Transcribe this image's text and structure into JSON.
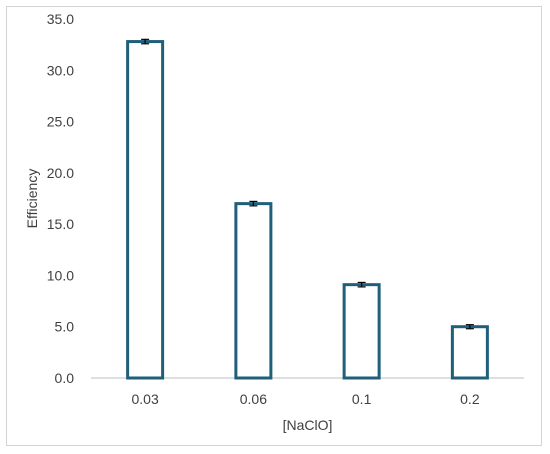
{
  "chart_data": {
    "type": "bar",
    "categories": [
      "0.03",
      "0.06",
      "0.1",
      "0.2"
    ],
    "values": [
      32.8,
      17.0,
      9.1,
      5.0
    ],
    "error": [
      0.12,
      0.12,
      0.12,
      0.1
    ],
    "xlabel": "[NaClO]",
    "ylabel": "Efficiency",
    "ylim": [
      0,
      35
    ],
    "yticks": [
      "0.0",
      "5.0",
      "10.0",
      "15.0",
      "20.0",
      "25.0",
      "30.0",
      "35.0"
    ],
    "grid": false,
    "legend": "none",
    "bar_fill": "#ffffff",
    "bar_stroke": "#1f5f7a",
    "axis_color": "#bfbfbf",
    "text_color": "#404040"
  }
}
